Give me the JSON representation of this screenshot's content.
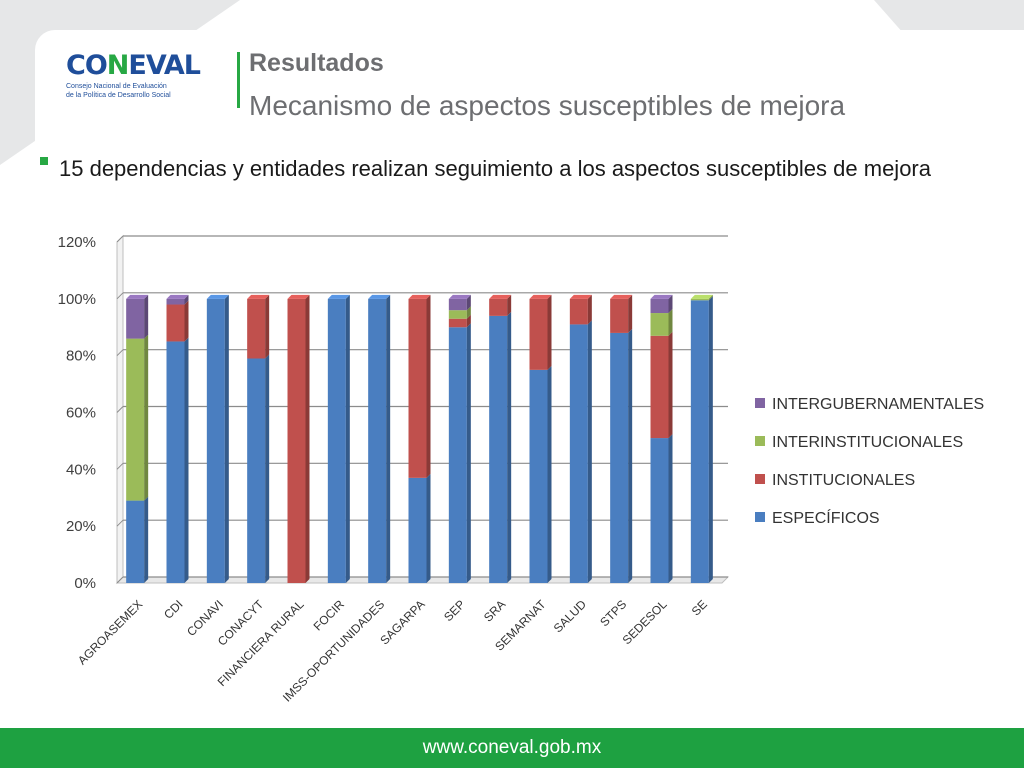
{
  "header": {
    "logo": {
      "word_a": "CO",
      "word_n": "N",
      "word_b": "EVAL",
      "tag_line1": "Consejo Nacional de Evaluación",
      "tag_line2": "de la Política de Desarrollo Social"
    },
    "title": "Resultados",
    "subtitle": "Mecanismo de aspectos susceptibles de mejora"
  },
  "bullet": "15 dependencias y entidades realizan seguimiento a los aspectos susceptibles de mejora",
  "footer": {
    "url": "www.coneval.gob.mx"
  },
  "colors": {
    "especificos": "#4a7ec0",
    "institucionales": "#c0504d",
    "interinstitucionales": "#9bbb59",
    "intergubernamentales": "#8064a2",
    "brand_green": "#1ea141",
    "brand_blue": "#1f4e9a"
  },
  "chart_data": {
    "type": "bar",
    "stacked": true,
    "categories": [
      "AGROASEMEX",
      "CDI",
      "CONAVI",
      "CONACYT",
      "FINANCIERA RURAL",
      "FOCIR",
      "IMSS-OPORTUNIDADES",
      "SAGARPA",
      "SEP",
      "SRA",
      "SEMARNAT",
      "SALUD",
      "STPS",
      "SEDESOL",
      "SE"
    ],
    "series": [
      {
        "name": "ESPECÍFICOS",
        "color": "#4a7ec0",
        "values": [
          29,
          85,
          100,
          79,
          0,
          100,
          100,
          37,
          90,
          94,
          75,
          91,
          88,
          51,
          99.5
        ]
      },
      {
        "name": "INSTITUCIONALES",
        "color": "#c0504d",
        "values": [
          0,
          13,
          0,
          21,
          100,
          0,
          0,
          63,
          3,
          6,
          25,
          9,
          12,
          36,
          0
        ]
      },
      {
        "name": "INTERINSTITUCIONALES",
        "color": "#9bbb59",
        "values": [
          57,
          0,
          0,
          0,
          0,
          0,
          0,
          0,
          3,
          0,
          0,
          0,
          0,
          8,
          0.5
        ]
      },
      {
        "name": "INTERGUBERNAMENTALES",
        "color": "#8064a2",
        "values": [
          14,
          2,
          0,
          0,
          0,
          0,
          0,
          0,
          4,
          0,
          0,
          0,
          0,
          5,
          0
        ]
      }
    ],
    "legend_order": [
      "INTERGUBERNAMENTALES",
      "INTERINSTITUCIONALES",
      "INSTITUCIONALES",
      "ESPECÍFICOS"
    ],
    "y_ticks": [
      "0%",
      "20%",
      "40%",
      "60%",
      "80%",
      "100%",
      "120%"
    ],
    "ylim": [
      0,
      120
    ],
    "grid": true,
    "legend_position": "right"
  }
}
